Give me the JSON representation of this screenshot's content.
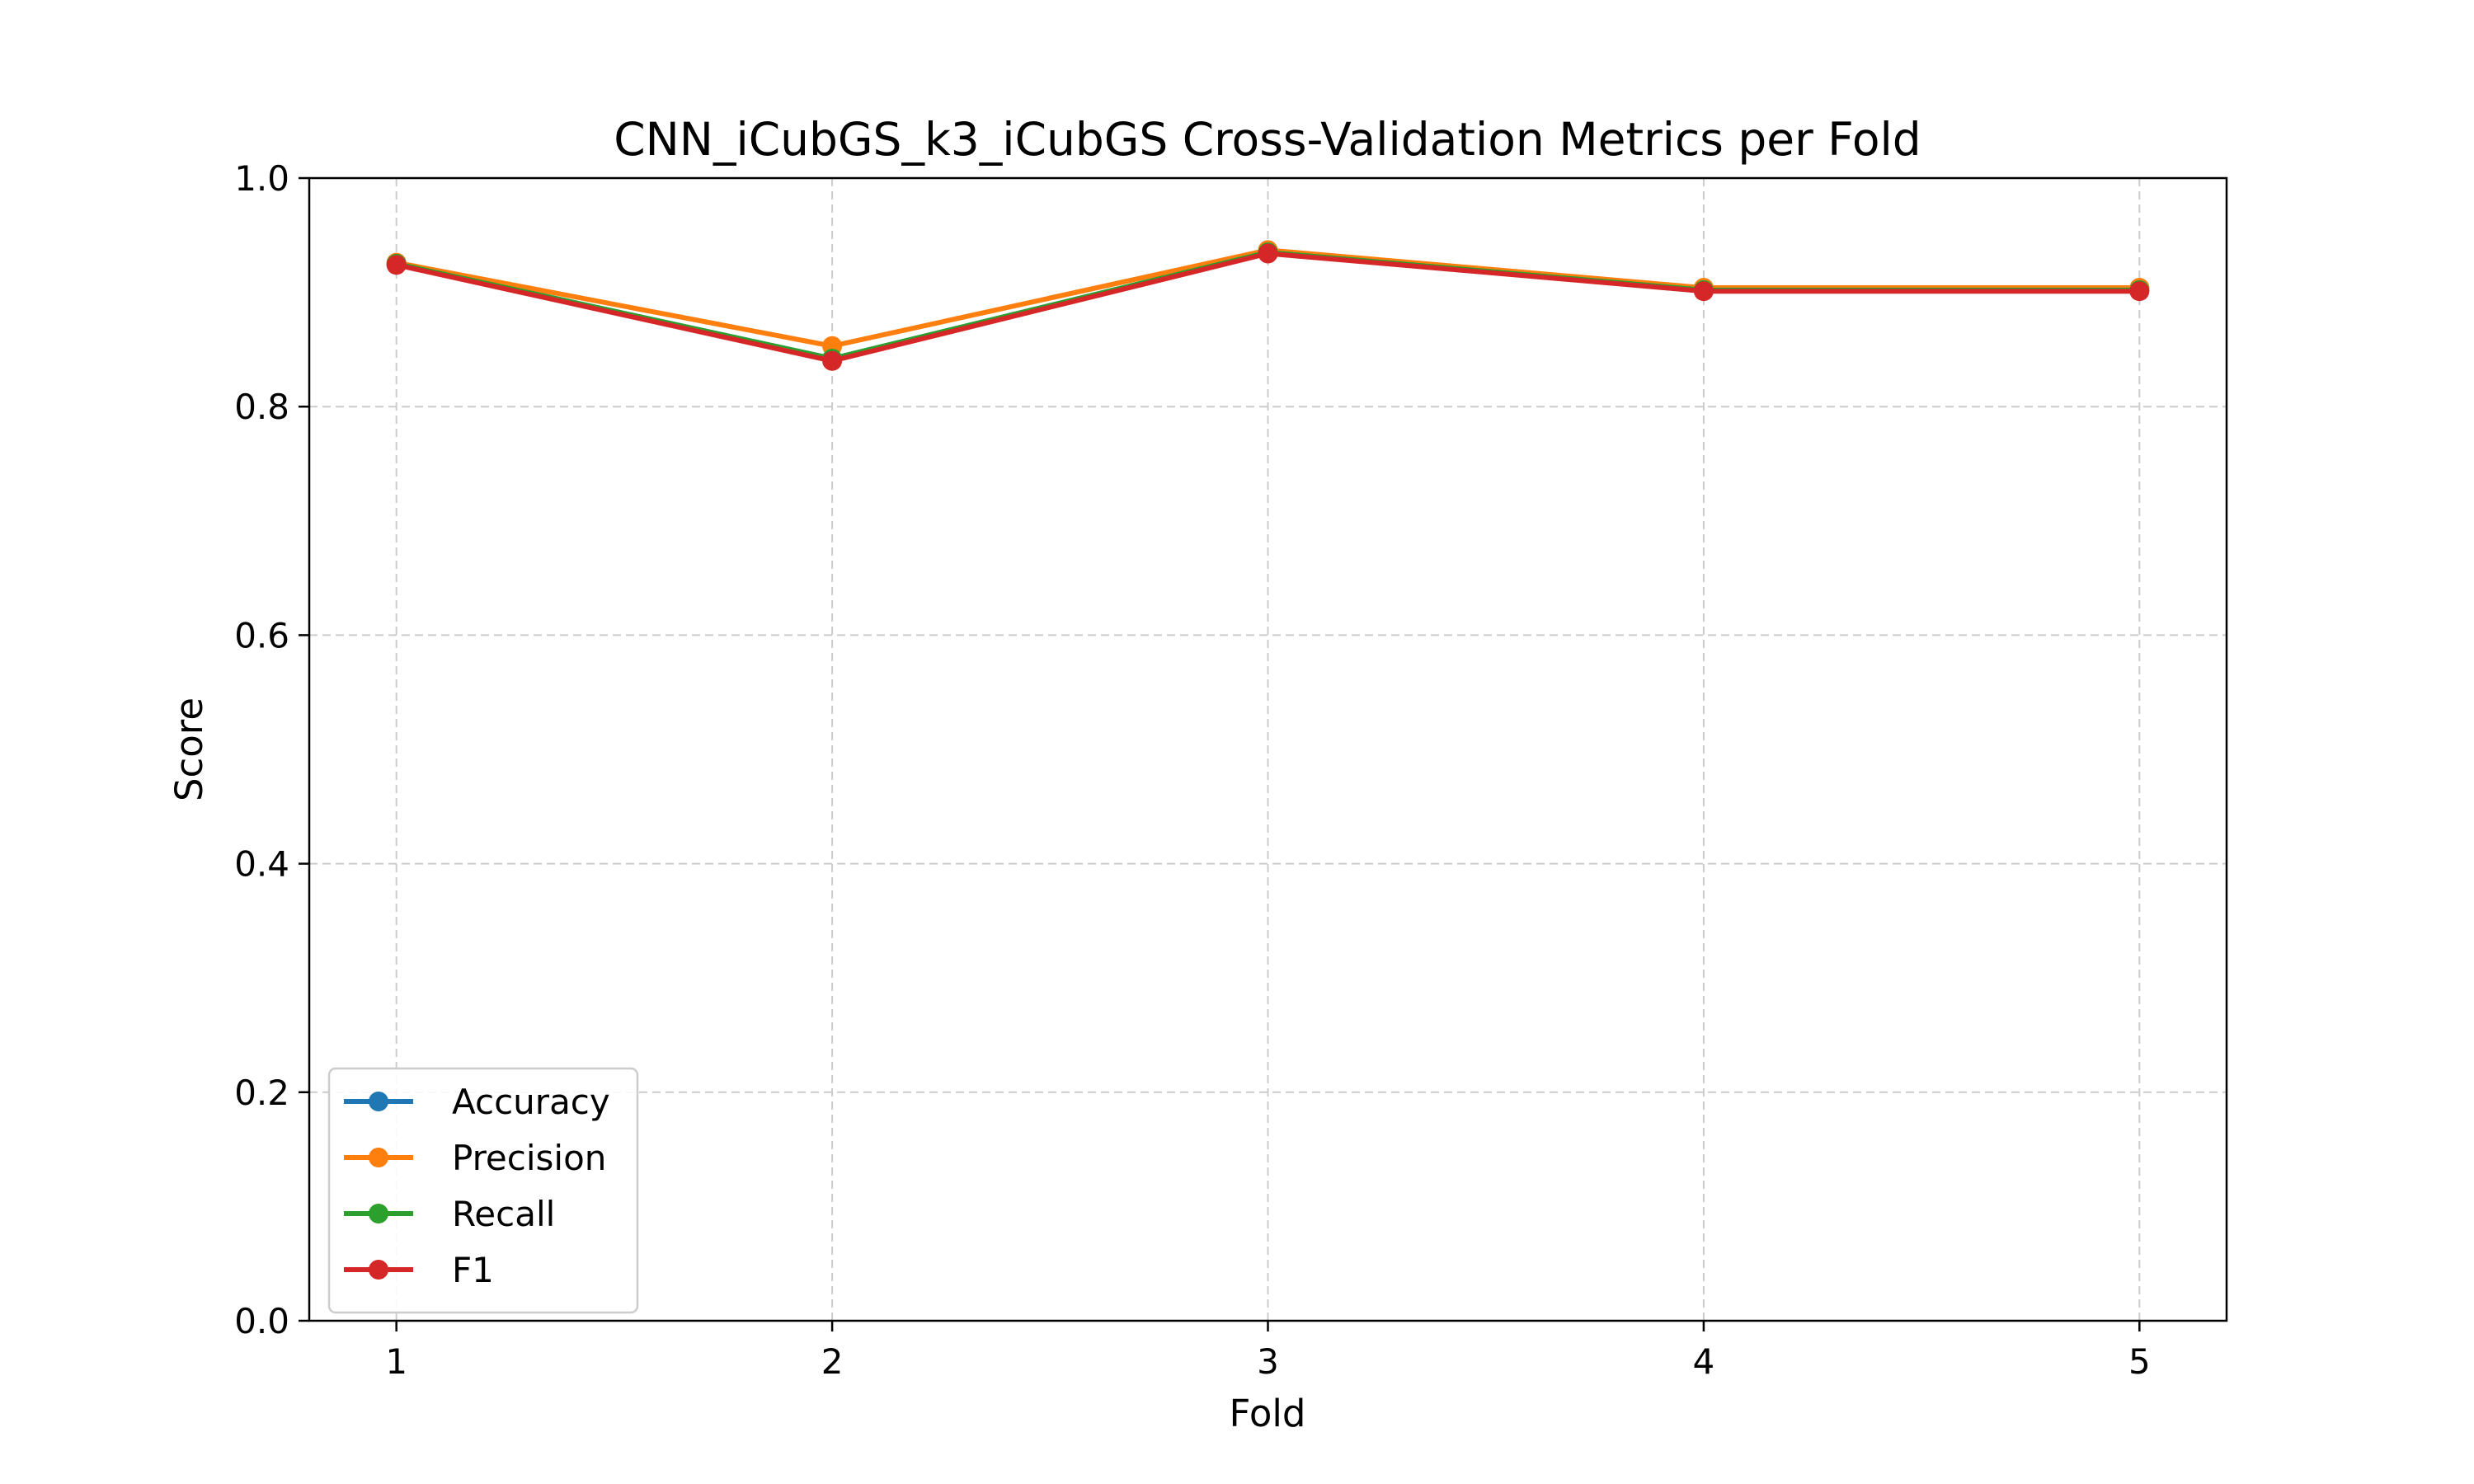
{
  "chart_data": {
    "type": "line",
    "title": "CNN_iCubGS_k3_iCubGS Cross-Validation Metrics per Fold",
    "xlabel": "Fold",
    "ylabel": "Score",
    "x": [
      1,
      2,
      3,
      4,
      5
    ],
    "xlim": [
      0.8,
      5.2
    ],
    "ylim": [
      0.0,
      1.0
    ],
    "xticks": [
      "1",
      "2",
      "3",
      "4",
      "5"
    ],
    "yticks": [
      "0.0",
      "0.2",
      "0.4",
      "0.6",
      "0.8",
      "1.0"
    ],
    "grid": true,
    "legend_position": "lower-left",
    "series": [
      {
        "name": "Accuracy",
        "color": "#1f77b4",
        "values": [
          0.925,
          0.842,
          0.935,
          0.902,
          0.902
        ]
      },
      {
        "name": "Precision",
        "color": "#ff7f0e",
        "values": [
          0.926,
          0.853,
          0.937,
          0.904,
          0.904
        ]
      },
      {
        "name": "Recall",
        "color": "#2ca02c",
        "values": [
          0.925,
          0.842,
          0.935,
          0.902,
          0.902
        ]
      },
      {
        "name": "F1",
        "color": "#d62728",
        "values": [
          0.924,
          0.84,
          0.934,
          0.901,
          0.901
        ]
      }
    ]
  }
}
